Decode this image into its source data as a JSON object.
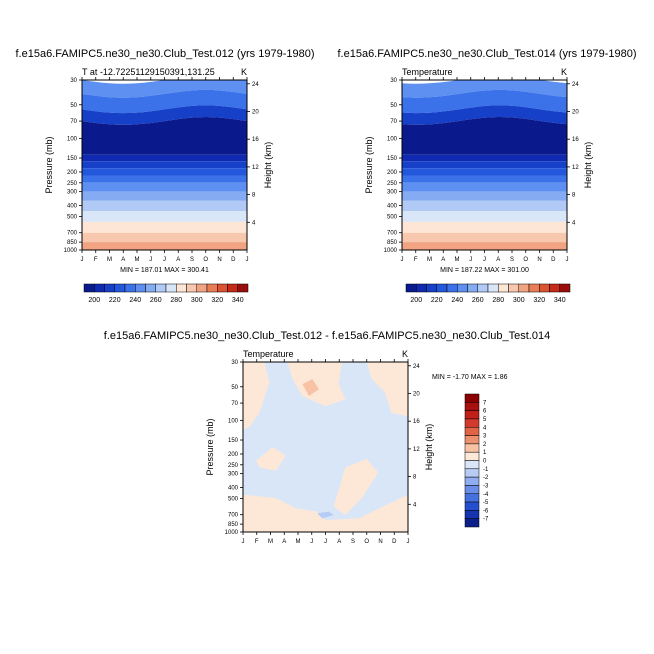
{
  "chart_data": [
    {
      "type": "heatmap",
      "title": "f.e15a6.FAMIPC5.ne30_ne30.Club_Test.012 (yrs 1979-1980)",
      "subtitle_left": "T at -12.72251129150391,131.25",
      "subtitle_right": "K",
      "ylabel": "Pressure (mb)",
      "ylabel_right": "Height (km)",
      "x_ticks": [
        "J",
        "F",
        "M",
        "A",
        "M",
        "J",
        "J",
        "A",
        "S",
        "O",
        "N",
        "D",
        "J"
      ],
      "y_ticks": [
        "30",
        "50",
        "70",
        "100",
        "150",
        "200",
        "250",
        "300",
        "400",
        "500",
        "700",
        "850",
        "1000"
      ],
      "y2_ticks": [
        "24",
        "20",
        "16",
        "12",
        "8",
        "4"
      ],
      "minmax": "MIN = 187.01 MAX = 300.41",
      "legend_labels": [
        "200",
        "220",
        "240",
        "260",
        "280",
        "300",
        "320",
        "340"
      ],
      "levels_pressure": [
        1000,
        850,
        700,
        500,
        400,
        300,
        250,
        200,
        150,
        100,
        70,
        50,
        30
      ],
      "temperature_profile_K": [
        297,
        288,
        281,
        266,
        256,
        240,
        230,
        218,
        205,
        196,
        200,
        208,
        213
      ]
    },
    {
      "type": "heatmap",
      "title": "f.e15a6.FAMIPC5.ne30_ne30.Club_Test.014 (yrs 1979-1980)",
      "subtitle_left": "Temperature",
      "subtitle_right": "K",
      "ylabel": "Pressure (mb)",
      "ylabel_right": "Height (km)",
      "x_ticks": [
        "J",
        "F",
        "M",
        "A",
        "M",
        "J",
        "J",
        "A",
        "S",
        "O",
        "N",
        "D",
        "J"
      ],
      "y_ticks": [
        "30",
        "50",
        "70",
        "100",
        "150",
        "200",
        "250",
        "300",
        "400",
        "500",
        "700",
        "850",
        "1000"
      ],
      "y2_ticks": [
        "24",
        "20",
        "16",
        "12",
        "8",
        "4"
      ],
      "minmax": "MIN = 187.22 MAX = 301.00",
      "legend_labels": [
        "200",
        "220",
        "240",
        "260",
        "280",
        "300",
        "320",
        "340"
      ]
    },
    {
      "type": "heatmap",
      "title": "f.e15a6.FAMIPC5.ne30_ne30.Club_Test.012 - f.e15a6.FAMIPC5.ne30_ne30.Club_Test.014",
      "subtitle_left": "Temperature",
      "subtitle_right": "K",
      "ylabel": "Pressure (mb)",
      "ylabel_right": "Height (km)",
      "x_ticks": [
        "J",
        "F",
        "M",
        "A",
        "M",
        "J",
        "J",
        "A",
        "S",
        "O",
        "N",
        "D",
        "J"
      ],
      "y_ticks": [
        "30",
        "50",
        "70",
        "100",
        "150",
        "200",
        "250",
        "300",
        "400",
        "500",
        "700",
        "850",
        "1000"
      ],
      "y2_ticks": [
        "24",
        "20",
        "16",
        "12",
        "8",
        "4"
      ],
      "minmax": "MIN =  -1.70 MAX =   1.86",
      "legend_labels": [
        "7",
        "6",
        "5",
        "4",
        "3",
        "2",
        "1",
        "0",
        "-1",
        "-2",
        "-3",
        "-4",
        "-5",
        "-6",
        "-7"
      ],
      "value_range": [
        -1.7,
        1.86
      ]
    }
  ],
  "colors": {
    "abs_scale": [
      "#0a1a8c",
      "#0f2ab0",
      "#1740c8",
      "#2458dc",
      "#3b72ea",
      "#5d90f0",
      "#85acf2",
      "#b0c9f5",
      "#d8e6f8",
      "#fde6d6",
      "#f7c8ae",
      "#f1a382",
      "#e97d57",
      "#dc5332",
      "#c42c19",
      "#9a0d0d"
    ],
    "diff_scale": [
      "#8b0000",
      "#a80f0f",
      "#c21f1a",
      "#d23b2c",
      "#e06345",
      "#ec9070",
      "#f7c3a4",
      "#fde8d8",
      "#d8e6f8",
      "#b7ccf5",
      "#90adf0",
      "#6a8ee8",
      "#4570df",
      "#2450cf",
      "#1434b0",
      "#0a1f8a"
    ]
  }
}
